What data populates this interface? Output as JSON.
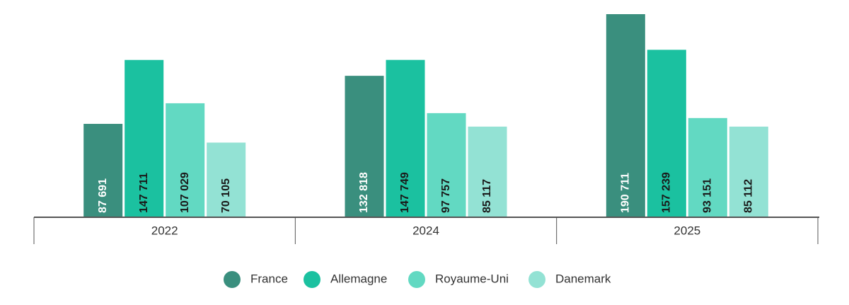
{
  "chart_data": {
    "type": "bar",
    "categories": [
      "2022",
      "2024",
      "2025"
    ],
    "series": [
      {
        "name": "France",
        "color": "#3a8f7e",
        "values": [
          87691,
          132818,
          190711
        ],
        "value_labels": [
          "87 691",
          "132 818",
          "190 711"
        ]
      },
      {
        "name": "Allemagne",
        "color": "#1bc1a0",
        "values": [
          147711,
          147749,
          157239
        ],
        "value_labels": [
          "147 711",
          "147 749",
          "157 239"
        ]
      },
      {
        "name": "Royaume-Uni",
        "color": "#62d9c2",
        "values": [
          107029,
          97757,
          93151
        ],
        "value_labels": [
          "107 029",
          "97 757",
          "93 151"
        ]
      },
      {
        "name": "Danemark",
        "color": "#93e2d4",
        "values": [
          70105,
          85117,
          85112
        ],
        "value_labels": [
          "70 105",
          "85 117",
          "85 112"
        ]
      }
    ]
  }
}
